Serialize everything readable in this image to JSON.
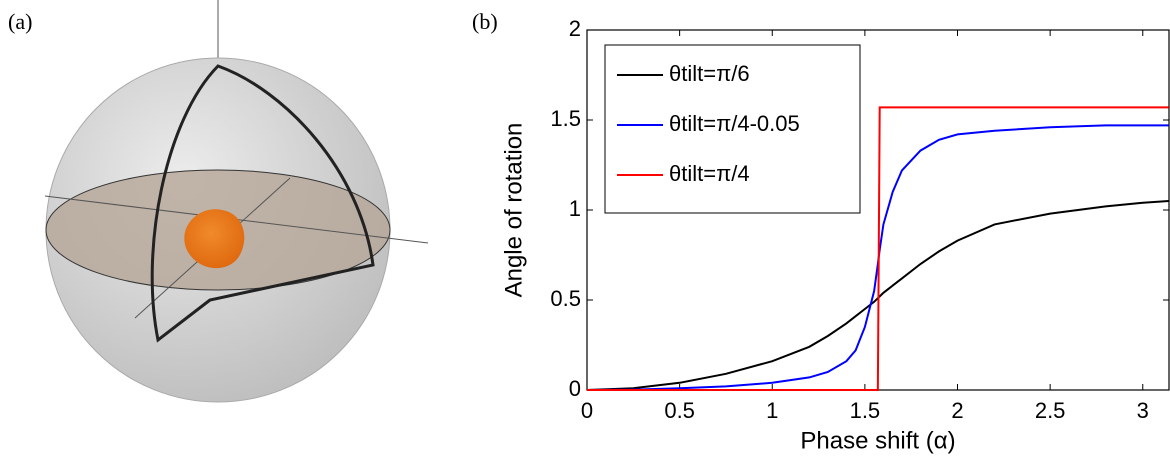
{
  "panel_labels": [
    "(a)",
    "(b)"
  ],
  "chart_data": {
    "type": "line",
    "x_label": "Phase shift (α)",
    "y_label": "Angle of rotation",
    "xlim": [
      0,
      3.1416
    ],
    "ylim": [
      0,
      2
    ],
    "xticks": [
      0,
      0.5,
      1,
      1.5,
      2,
      2.5,
      3
    ],
    "yticks": [
      0,
      0.5,
      1,
      1.5,
      2
    ],
    "legend": "upper-left",
    "x": [
      0,
      0.25,
      0.5,
      0.75,
      1,
      1.2,
      1.3,
      1.4,
      1.45,
      1.5,
      1.55,
      1.57,
      1.58,
      1.6,
      1.65,
      1.7,
      1.8,
      1.9,
      2,
      2.2,
      2.5,
      2.8,
      3,
      3.14
    ],
    "series": [
      {
        "name": "θtilt=π/6",
        "color": "#000000",
        "values": [
          0,
          0.01,
          0.04,
          0.09,
          0.16,
          0.24,
          0.3,
          0.37,
          0.41,
          0.45,
          0.49,
          0.51,
          0.52,
          0.54,
          0.58,
          0.62,
          0.7,
          0.77,
          0.83,
          0.92,
          0.98,
          1.02,
          1.04,
          1.05
        ]
      },
      {
        "name": "θtilt=π/4-0.05",
        "color": "#0000ff",
        "values": [
          0,
          0.002,
          0.01,
          0.02,
          0.04,
          0.07,
          0.1,
          0.16,
          0.22,
          0.35,
          0.55,
          0.7,
          0.78,
          0.92,
          1.1,
          1.22,
          1.33,
          1.39,
          1.42,
          1.44,
          1.46,
          1.47,
          1.47,
          1.47
        ]
      },
      {
        "name": "θtilt=π/4",
        "color": "#ff0000",
        "values": [
          0,
          0,
          0,
          0,
          0,
          0,
          0,
          0,
          0,
          0,
          0,
          0,
          1.57,
          1.57,
          1.57,
          1.57,
          1.57,
          1.57,
          1.57,
          1.57,
          1.57,
          1.57,
          1.57,
          1.57
        ]
      }
    ]
  }
}
